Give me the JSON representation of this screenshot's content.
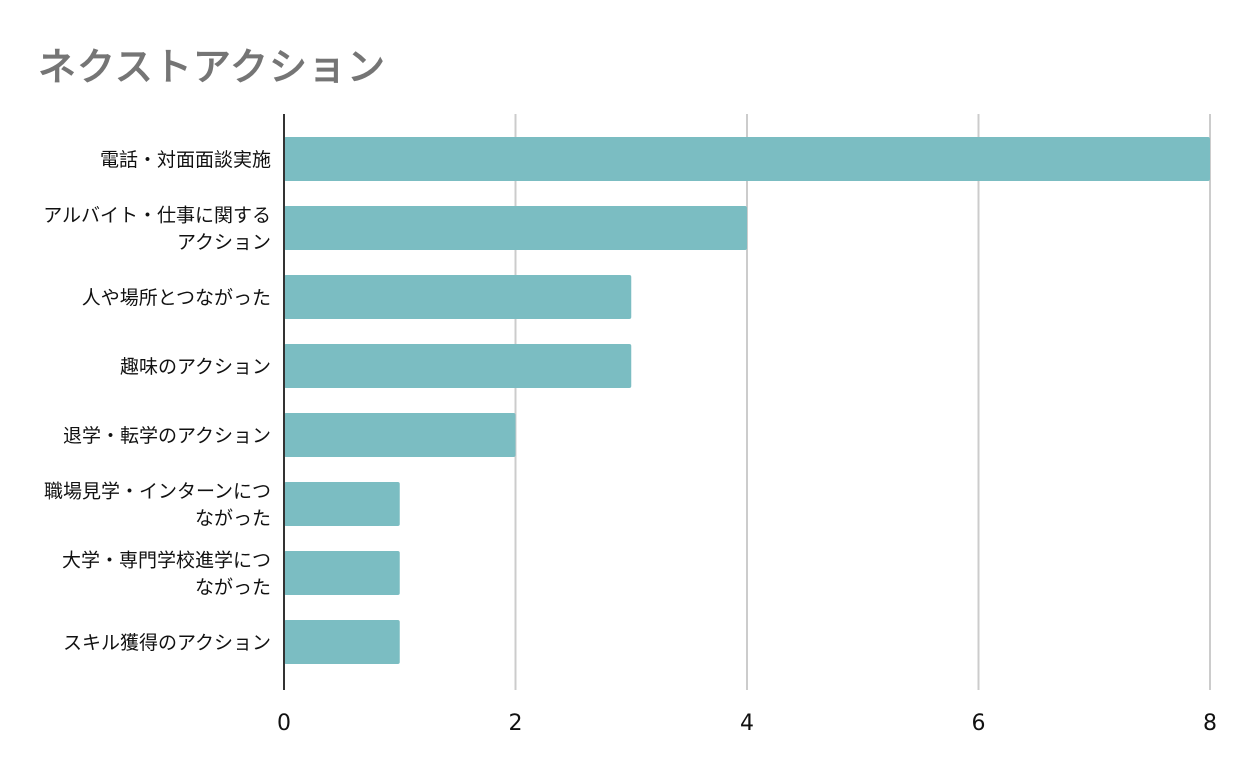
{
  "chart_data": {
    "type": "bar",
    "orientation": "horizontal",
    "title": "ネクストアクション",
    "xlabel": "",
    "ylabel": "",
    "categories": [
      [
        "電話・対面面談実施"
      ],
      [
        "アルバイト・仕事に関する",
        "アクション"
      ],
      [
        "人や場所とつながった"
      ],
      [
        "趣味のアクション"
      ],
      [
        "退学・転学のアクション"
      ],
      [
        "職場見学・インターンにつ",
        "ながった"
      ],
      [
        "大学・専門学校進学につ",
        "ながった"
      ],
      [
        "スキル獲得のアクション"
      ]
    ],
    "values": [
      8,
      4,
      3,
      3,
      2,
      1,
      1,
      1
    ],
    "xlim": [
      0,
      8
    ],
    "xticks": [
      "0",
      "2",
      "4",
      "6",
      "8"
    ],
    "grid": true,
    "legend": "none",
    "colors": {
      "bar": "#7bbdc2",
      "grid": "#cccccc",
      "axis": "#333333",
      "title": "#757575"
    }
  }
}
